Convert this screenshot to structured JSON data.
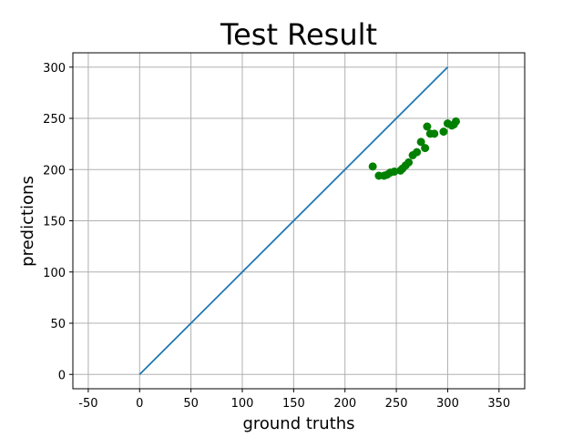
{
  "chart_data": {
    "type": "scatter",
    "title": "Test Result",
    "xlabel": "ground truths",
    "ylabel": "predictions",
    "xlim": [
      -65,
      375
    ],
    "ylim": [
      -14,
      314
    ],
    "xticks": [
      -50,
      0,
      50,
      100,
      150,
      200,
      250,
      300,
      350
    ],
    "yticks": [
      0,
      50,
      100,
      150,
      200,
      250,
      300
    ],
    "grid": true,
    "legend": "none",
    "series": [
      {
        "kind": "line",
        "color": "#1f77b4",
        "x": [
          0,
          300
        ],
        "y": [
          0,
          300
        ]
      },
      {
        "kind": "scatter",
        "color": "#008000",
        "x": [
          227,
          233,
          238,
          241,
          244,
          248,
          254,
          256,
          259,
          262,
          266,
          270,
          274,
          278,
          280,
          283,
          287,
          296,
          300,
          304,
          306,
          308
        ],
        "y": [
          203,
          194,
          194,
          195,
          197,
          198,
          199,
          201,
          204,
          207,
          214,
          217,
          227,
          221,
          242,
          235,
          235,
          237,
          245,
          243,
          244,
          247
        ]
      }
    ]
  }
}
